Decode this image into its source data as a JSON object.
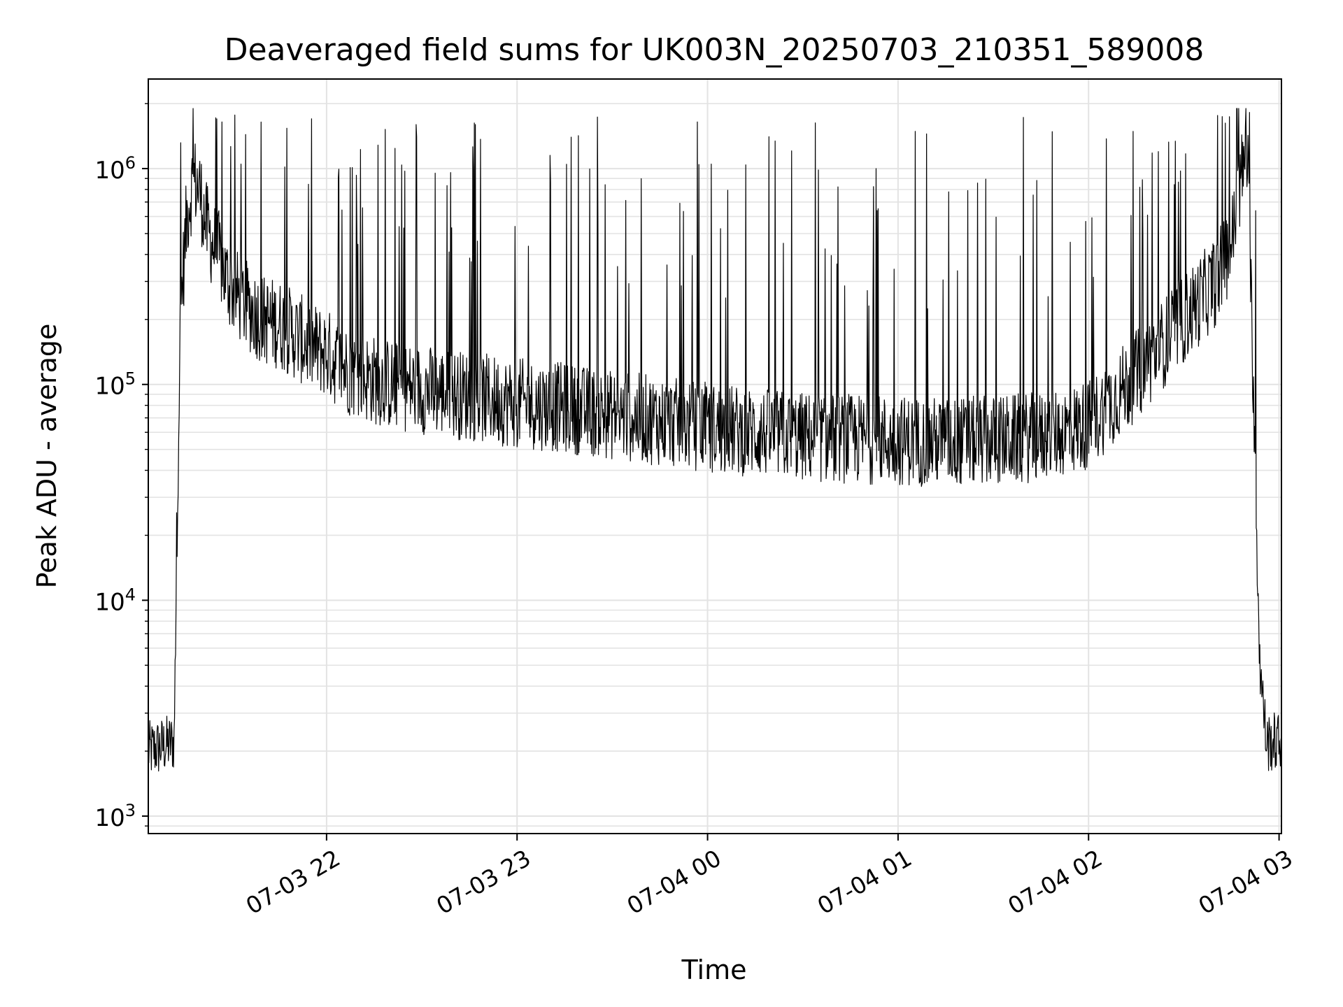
{
  "chart_data": {
    "type": "line",
    "title": "Deaveraged field sums for UK003N_20250703_210351_589008",
    "xlabel": "Time",
    "ylabel": "Peak ADU - average",
    "yscale": "log",
    "ylim": [
      830,
      2600000
    ],
    "xlim": [
      "2025-07-03 21:03:51",
      "2025-07-04 03:00:45"
    ],
    "grid": true,
    "line_color": "#000000",
    "grid_color": "#e3e3e3",
    "x_ticks": [
      {
        "value": "2025-07-03 22:00",
        "label": "07-03 22"
      },
      {
        "value": "2025-07-03 23:00",
        "label": "07-03 23"
      },
      {
        "value": "2025-07-04 00:00",
        "label": "07-04 00"
      },
      {
        "value": "2025-07-04 01:00",
        "label": "07-04 01"
      },
      {
        "value": "2025-07-04 02:00",
        "label": "07-04 02"
      },
      {
        "value": "2025-07-04 03:00",
        "label": "07-04 03"
      }
    ],
    "y_ticks": [
      {
        "value": 1000,
        "base": "10",
        "exp": "3"
      },
      {
        "value": 10000,
        "base": "10",
        "exp": "4"
      },
      {
        "value": 100000,
        "base": "10",
        "exp": "5"
      },
      {
        "value": 1000000,
        "base": "10",
        "exp": "6"
      }
    ],
    "series": [
      {
        "x": [
          "2025-07-03 21:03:51",
          "2025-07-03 21:08:00",
          "2025-07-03 21:12:00",
          "2025-07-03 21:13:00",
          "2025-07-03 21:14:00",
          "2025-07-03 21:16:00",
          "2025-07-03 21:18:00",
          "2025-07-03 21:20:00",
          "2025-07-03 21:22:00",
          "2025-07-03 21:24:00",
          "2025-07-03 21:26:00",
          "2025-07-03 21:28:00",
          "2025-07-03 21:30:00",
          "2025-07-03 21:35:00",
          "2025-07-03 21:40:00",
          "2025-07-03 21:45:00",
          "2025-07-03 21:50:00",
          "2025-07-03 21:55:00",
          "2025-07-03 22:00:00",
          "2025-07-03 22:05:00",
          "2025-07-03 22:10:00",
          "2025-07-03 22:20:00",
          "2025-07-03 22:30:00",
          "2025-07-03 22:45:00",
          "2025-07-03 23:00:00",
          "2025-07-03 23:15:00",
          "2025-07-03 23:30:00",
          "2025-07-03 23:45:00",
          "2025-07-04 00:00:00",
          "2025-07-04 00:15:00",
          "2025-07-04 00:30:00",
          "2025-07-04 00:45:00",
          "2025-07-04 01:00:00",
          "2025-07-04 01:15:00",
          "2025-07-04 01:30:00",
          "2025-07-04 01:45:00",
          "2025-07-04 02:00:00",
          "2025-07-04 02:15:00",
          "2025-07-04 02:30:00",
          "2025-07-04 02:40:00",
          "2025-07-04 02:45:00",
          "2025-07-04 02:48:00",
          "2025-07-04 02:50:00",
          "2025-07-04 02:52:00",
          "2025-07-04 02:54:00",
          "2025-07-04 02:56:00",
          "2025-07-04 03:00:45"
        ],
        "y": [
          2000,
          2100,
          2200,
          30000,
          220000,
          600000,
          900000,
          800000,
          550000,
          450000,
          400000,
          320000,
          280000,
          230000,
          200000,
          190000,
          170000,
          150000,
          140000,
          120000,
          110000,
          100000,
          95000,
          88000,
          82000,
          78000,
          72000,
          68000,
          63000,
          60000,
          57000,
          56000,
          55000,
          54000,
          55000,
          57000,
          65000,
          110000,
          200000,
          300000,
          450000,
          900000,
          1200000,
          90000,
          5000,
          2200,
          2200
        ]
      }
    ]
  }
}
